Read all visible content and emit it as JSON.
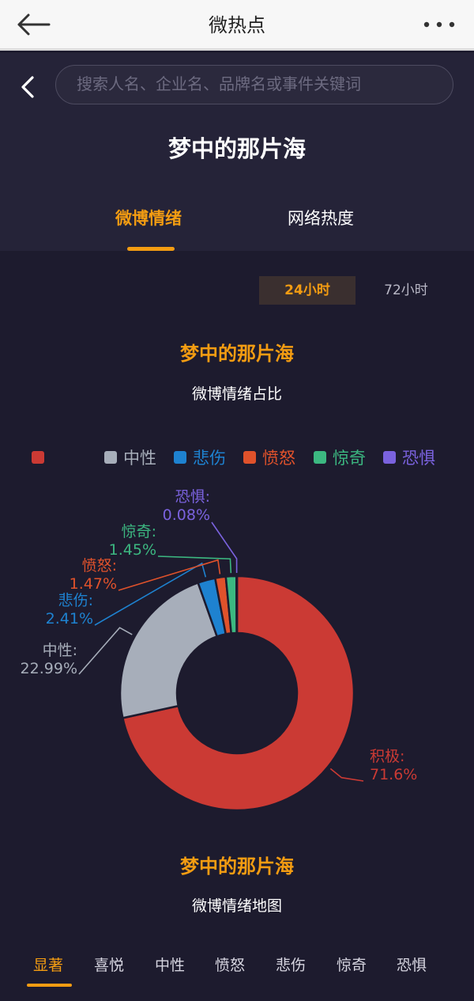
{
  "appbar": {
    "title": "微热点"
  },
  "search": {
    "placeholder": "搜索人名、企业名、品牌名或事件关键词"
  },
  "page_title": "梦中的那片海",
  "tabs": [
    {
      "label": "微博情绪",
      "active": true
    },
    {
      "label": "网络热度",
      "active": false
    }
  ],
  "time_range": [
    {
      "label": "24小时",
      "active": true
    },
    {
      "label": "72小时",
      "active": false
    }
  ],
  "section1": {
    "title": "梦中的那片海",
    "subtitle": "微博情绪占比"
  },
  "section2": {
    "title": "梦中的那片海",
    "subtitle": "微博情绪地图"
  },
  "legend": [
    {
      "label": "",
      "color": "#cb3a34"
    },
    {
      "label": "中性",
      "color": "#a7aeba"
    },
    {
      "label": "悲伤",
      "color": "#1e82d0"
    },
    {
      "label": "愤怒",
      "color": "#e0522b"
    },
    {
      "label": "惊奇",
      "color": "#3cb881"
    },
    {
      "label": "恐惧",
      "color": "#7a62de"
    }
  ],
  "chart_data": {
    "type": "pie",
    "donut": true,
    "legend_position": "top",
    "series": [
      {
        "name": "积极",
        "value": 71.6,
        "label": "71.6%",
        "color": "#cb3a34"
      },
      {
        "name": "中性",
        "value": 22.99,
        "label": "22.99%",
        "color": "#a7aeba"
      },
      {
        "name": "悲伤",
        "value": 2.41,
        "label": "2.41%",
        "color": "#1e82d0"
      },
      {
        "name": "愤怒",
        "value": 1.47,
        "label": "1.47%",
        "color": "#e0522b"
      },
      {
        "name": "惊奇",
        "value": 1.45,
        "label": "1.45%",
        "color": "#3cb881"
      },
      {
        "name": "恐惧",
        "value": 0.08,
        "label": "0.08%",
        "color": "#7a62de"
      }
    ]
  },
  "bottom_tabs": [
    {
      "label": "显著",
      "active": true
    },
    {
      "label": "喜悦",
      "active": false
    },
    {
      "label": "中性",
      "active": false
    },
    {
      "label": "愤怒",
      "active": false
    },
    {
      "label": "悲伤",
      "active": false
    },
    {
      "label": "惊奇",
      "active": false
    },
    {
      "label": "恐惧",
      "active": false
    }
  ]
}
